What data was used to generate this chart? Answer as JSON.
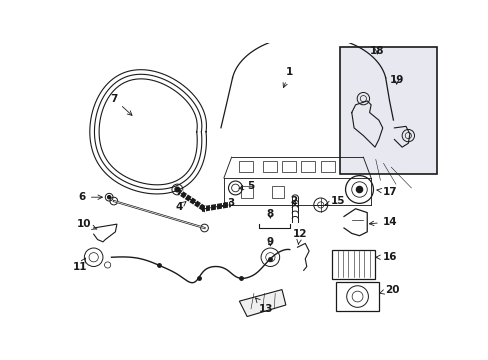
{
  "bg_color": "#ffffff",
  "line_color": "#1a1a1a",
  "fig_width": 4.89,
  "fig_height": 3.6,
  "dpi": 100,
  "seal_color": "#e8e8e8",
  "box_color": "#e0e0e8"
}
